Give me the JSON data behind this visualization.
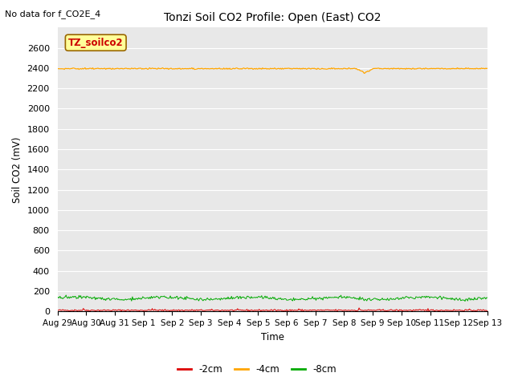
{
  "title": "Tonzi Soil CO2 Profile: Open (East) CO2",
  "no_data_text": "No data for f_CO2E_4",
  "xlabel": "Time",
  "ylabel": "Soil CO2 (mV)",
  "ylim": [
    0,
    2800
  ],
  "yticks": [
    0,
    200,
    400,
    600,
    800,
    1000,
    1200,
    1400,
    1600,
    1800,
    2000,
    2200,
    2400,
    2600
  ],
  "bg_color": "#e8e8e8",
  "fig_color": "#ffffff",
  "legend_label": "TZ_soilco2",
  "legend_box_color": "#ffff99",
  "legend_box_edge": "#996600",
  "legend_text_color": "#cc0000",
  "series": {
    "minus2cm": {
      "label": "-2cm",
      "color": "#dd0000",
      "base": 12,
      "noise": 4
    },
    "minus4cm": {
      "label": "-4cm",
      "color": "#ffa500",
      "base": 2395,
      "noise": 3
    },
    "minus8cm": {
      "label": "-8cm",
      "color": "#00aa00",
      "base": 130,
      "noise": 8
    }
  },
  "n_points": 500,
  "x_start": 0,
  "x_end": 15,
  "x_tick_labels": [
    "Aug 29",
    "Aug 30",
    "Aug 31",
    "Sep 1",
    "Sep 2",
    "Sep 3",
    "Sep 4",
    "Sep 5",
    "Sep 6",
    "Sep 7",
    "Sep 8",
    "Sep 9",
    "Sep 10",
    "Sep 11",
    "Sep 12",
    "Sep 13"
  ],
  "x_tick_positions": [
    0,
    1,
    2,
    3,
    4,
    5,
    6,
    7,
    8,
    9,
    10,
    11,
    12,
    13,
    14,
    15
  ]
}
